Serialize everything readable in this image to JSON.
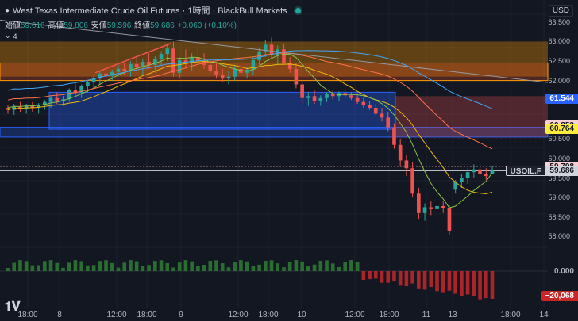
{
  "header": {
    "symbol_title": "West Texas Intermediate Crude Oil Futures · 1時間 · BlackBull Markets",
    "ohlc": [
      {
        "label": "始値",
        "value": "59.616"
      },
      {
        "label": "高値",
        "value": "59.806"
      },
      {
        "label": "安値",
        "value": "59.596"
      },
      {
        "label": "終値",
        "value": "59.686"
      },
      {
        "label": "",
        "value": "+0.060 (+0.10%)"
      }
    ],
    "indicator_count": "4",
    "currency": "USD"
  },
  "price_axis": {
    "labels": [
      "63.500",
      "63.000",
      "62.500",
      "62.000",
      "60.500",
      "60.000",
      "59.500",
      "59.000",
      "58.500",
      "58.000"
    ],
    "tags": [
      {
        "text": "61.544",
        "bg": "#2962ff",
        "fg": "#ffffff"
      },
      {
        "text": "60.853",
        "bg": "#f8cfd3",
        "fg": "#131722"
      },
      {
        "text": "60.778",
        "bg": "#2962ff",
        "fg": "#ffffff"
      },
      {
        "text": "60.764",
        "bg": "#ffeb3b",
        "fg": "#131722"
      },
      {
        "text": "59.798",
        "bg": "#f8cfd3",
        "fg": "#131722"
      },
      {
        "text": "59.686",
        "bg": "#d1d4dc",
        "fg": "#131722"
      }
    ],
    "symbol_tag": "USOIL.F",
    "volume_labels": [
      "0.000",
      "−20,068"
    ]
  },
  "time_axis": [
    "18:00",
    "8",
    "12:00",
    "18:00",
    "9",
    "12:00",
    "18:00",
    "10",
    "12:00",
    "18:00",
    "11",
    "13",
    "18:00",
    "14"
  ],
  "colors": {
    "up": "#26a69a",
    "down": "#ef5350",
    "bg": "#131722"
  },
  "logo_icon": "tradingview-logo-icon",
  "chart_data": {
    "type": "candlestick",
    "y_range": [
      57.6,
      63.7
    ],
    "candles": [
      [
        61.3,
        61.38,
        61.15,
        61.25
      ],
      [
        61.25,
        61.4,
        61.12,
        61.32
      ],
      [
        61.32,
        61.45,
        61.2,
        61.28
      ],
      [
        61.28,
        61.4,
        61.15,
        61.35
      ],
      [
        61.35,
        61.45,
        61.2,
        61.3
      ],
      [
        61.3,
        61.42,
        61.15,
        61.38
      ],
      [
        61.38,
        61.5,
        61.25,
        61.45
      ],
      [
        61.45,
        61.62,
        61.3,
        61.55
      ],
      [
        61.55,
        61.7,
        61.4,
        61.48
      ],
      [
        61.48,
        61.6,
        61.35,
        61.52
      ],
      [
        61.52,
        61.8,
        61.45,
        61.75
      ],
      [
        61.75,
        61.92,
        61.6,
        61.68
      ],
      [
        61.68,
        61.9,
        61.55,
        61.85
      ],
      [
        61.85,
        62.0,
        61.7,
        61.95
      ],
      [
        61.95,
        62.15,
        61.8,
        62.05
      ],
      [
        62.05,
        62.25,
        61.9,
        62.18
      ],
      [
        62.18,
        62.3,
        62.05,
        62.12
      ],
      [
        62.12,
        62.28,
        62.0,
        62.22
      ],
      [
        62.22,
        62.4,
        62.1,
        62.3
      ],
      [
        62.3,
        62.45,
        62.15,
        62.25
      ],
      [
        62.25,
        62.5,
        62.1,
        62.42
      ],
      [
        62.42,
        62.6,
        62.25,
        62.35
      ],
      [
        62.35,
        62.55,
        62.15,
        62.48
      ],
      [
        62.48,
        62.7,
        62.3,
        62.4
      ],
      [
        62.4,
        62.62,
        62.2,
        62.55
      ],
      [
        62.55,
        62.75,
        62.4,
        62.68
      ],
      [
        62.68,
        62.95,
        62.5,
        62.82
      ],
      [
        62.82,
        63.0,
        62.1,
        62.2
      ],
      [
        62.2,
        62.6,
        62.05,
        62.52
      ],
      [
        62.52,
        62.8,
        62.35,
        62.45
      ],
      [
        62.45,
        62.7,
        62.25,
        62.6
      ],
      [
        62.6,
        62.85,
        62.4,
        62.5
      ],
      [
        62.5,
        62.7,
        62.3,
        62.4
      ],
      [
        62.4,
        62.55,
        62.2,
        62.25
      ],
      [
        62.25,
        62.45,
        62.05,
        62.15
      ],
      [
        62.15,
        62.3,
        61.95,
        62.05
      ],
      [
        62.05,
        62.25,
        61.9,
        62.1
      ],
      [
        62.1,
        62.4,
        62.0,
        62.3
      ],
      [
        62.3,
        62.5,
        62.15,
        62.2
      ],
      [
        62.2,
        62.35,
        62.05,
        62.28
      ],
      [
        62.28,
        62.6,
        62.15,
        62.52
      ],
      [
        62.52,
        62.85,
        62.4,
        62.75
      ],
      [
        62.75,
        63.05,
        62.6,
        62.92
      ],
      [
        62.92,
        63.1,
        62.55,
        62.65
      ],
      [
        62.65,
        62.9,
        62.4,
        62.8
      ],
      [
        62.8,
        62.95,
        62.4,
        62.45
      ],
      [
        62.45,
        62.6,
        62.2,
        62.3
      ],
      [
        62.3,
        62.45,
        61.8,
        61.9
      ],
      [
        61.9,
        62.0,
        61.4,
        61.55
      ],
      [
        61.55,
        61.7,
        61.35,
        61.6
      ],
      [
        61.6,
        61.75,
        61.4,
        61.48
      ],
      [
        61.48,
        61.62,
        61.35,
        61.55
      ],
      [
        61.55,
        61.7,
        61.45,
        61.65
      ],
      [
        61.65,
        61.75,
        61.5,
        61.6
      ],
      [
        61.6,
        61.72,
        61.48,
        61.68
      ],
      [
        61.68,
        61.78,
        61.55,
        61.62
      ],
      [
        61.62,
        61.7,
        61.5,
        61.55
      ],
      [
        61.55,
        61.62,
        61.4,
        61.45
      ],
      [
        61.45,
        61.55,
        61.3,
        61.38
      ],
      [
        61.38,
        61.48,
        61.25,
        61.3
      ],
      [
        61.3,
        61.4,
        61.1,
        61.15
      ],
      [
        61.15,
        61.3,
        60.95,
        61.05
      ],
      [
        61.05,
        61.2,
        60.7,
        60.8
      ],
      [
        60.8,
        60.9,
        60.25,
        60.35
      ],
      [
        60.35,
        60.5,
        59.8,
        59.95
      ],
      [
        59.95,
        60.1,
        59.55,
        59.75
      ],
      [
        59.75,
        59.9,
        59.0,
        59.1
      ],
      [
        59.1,
        59.25,
        58.45,
        58.6
      ],
      [
        58.6,
        58.85,
        58.4,
        58.75
      ],
      [
        58.75,
        58.9,
        58.55,
        58.7
      ],
      [
        58.7,
        58.85,
        58.5,
        58.78
      ],
      [
        58.78,
        58.9,
        58.6,
        58.72
      ],
      [
        58.72,
        58.8,
        58.05,
        58.15
      ],
      [
        59.2,
        59.45,
        59.1,
        59.4
      ],
      [
        59.4,
        59.6,
        59.25,
        59.5
      ],
      [
        59.5,
        59.75,
        59.35,
        59.65
      ],
      [
        59.65,
        59.85,
        59.5,
        59.72
      ],
      [
        59.72,
        59.85,
        59.55,
        59.6
      ],
      [
        59.6,
        59.75,
        59.45,
        59.55
      ],
      [
        59.616,
        59.806,
        59.596,
        59.686
      ]
    ]
  }
}
